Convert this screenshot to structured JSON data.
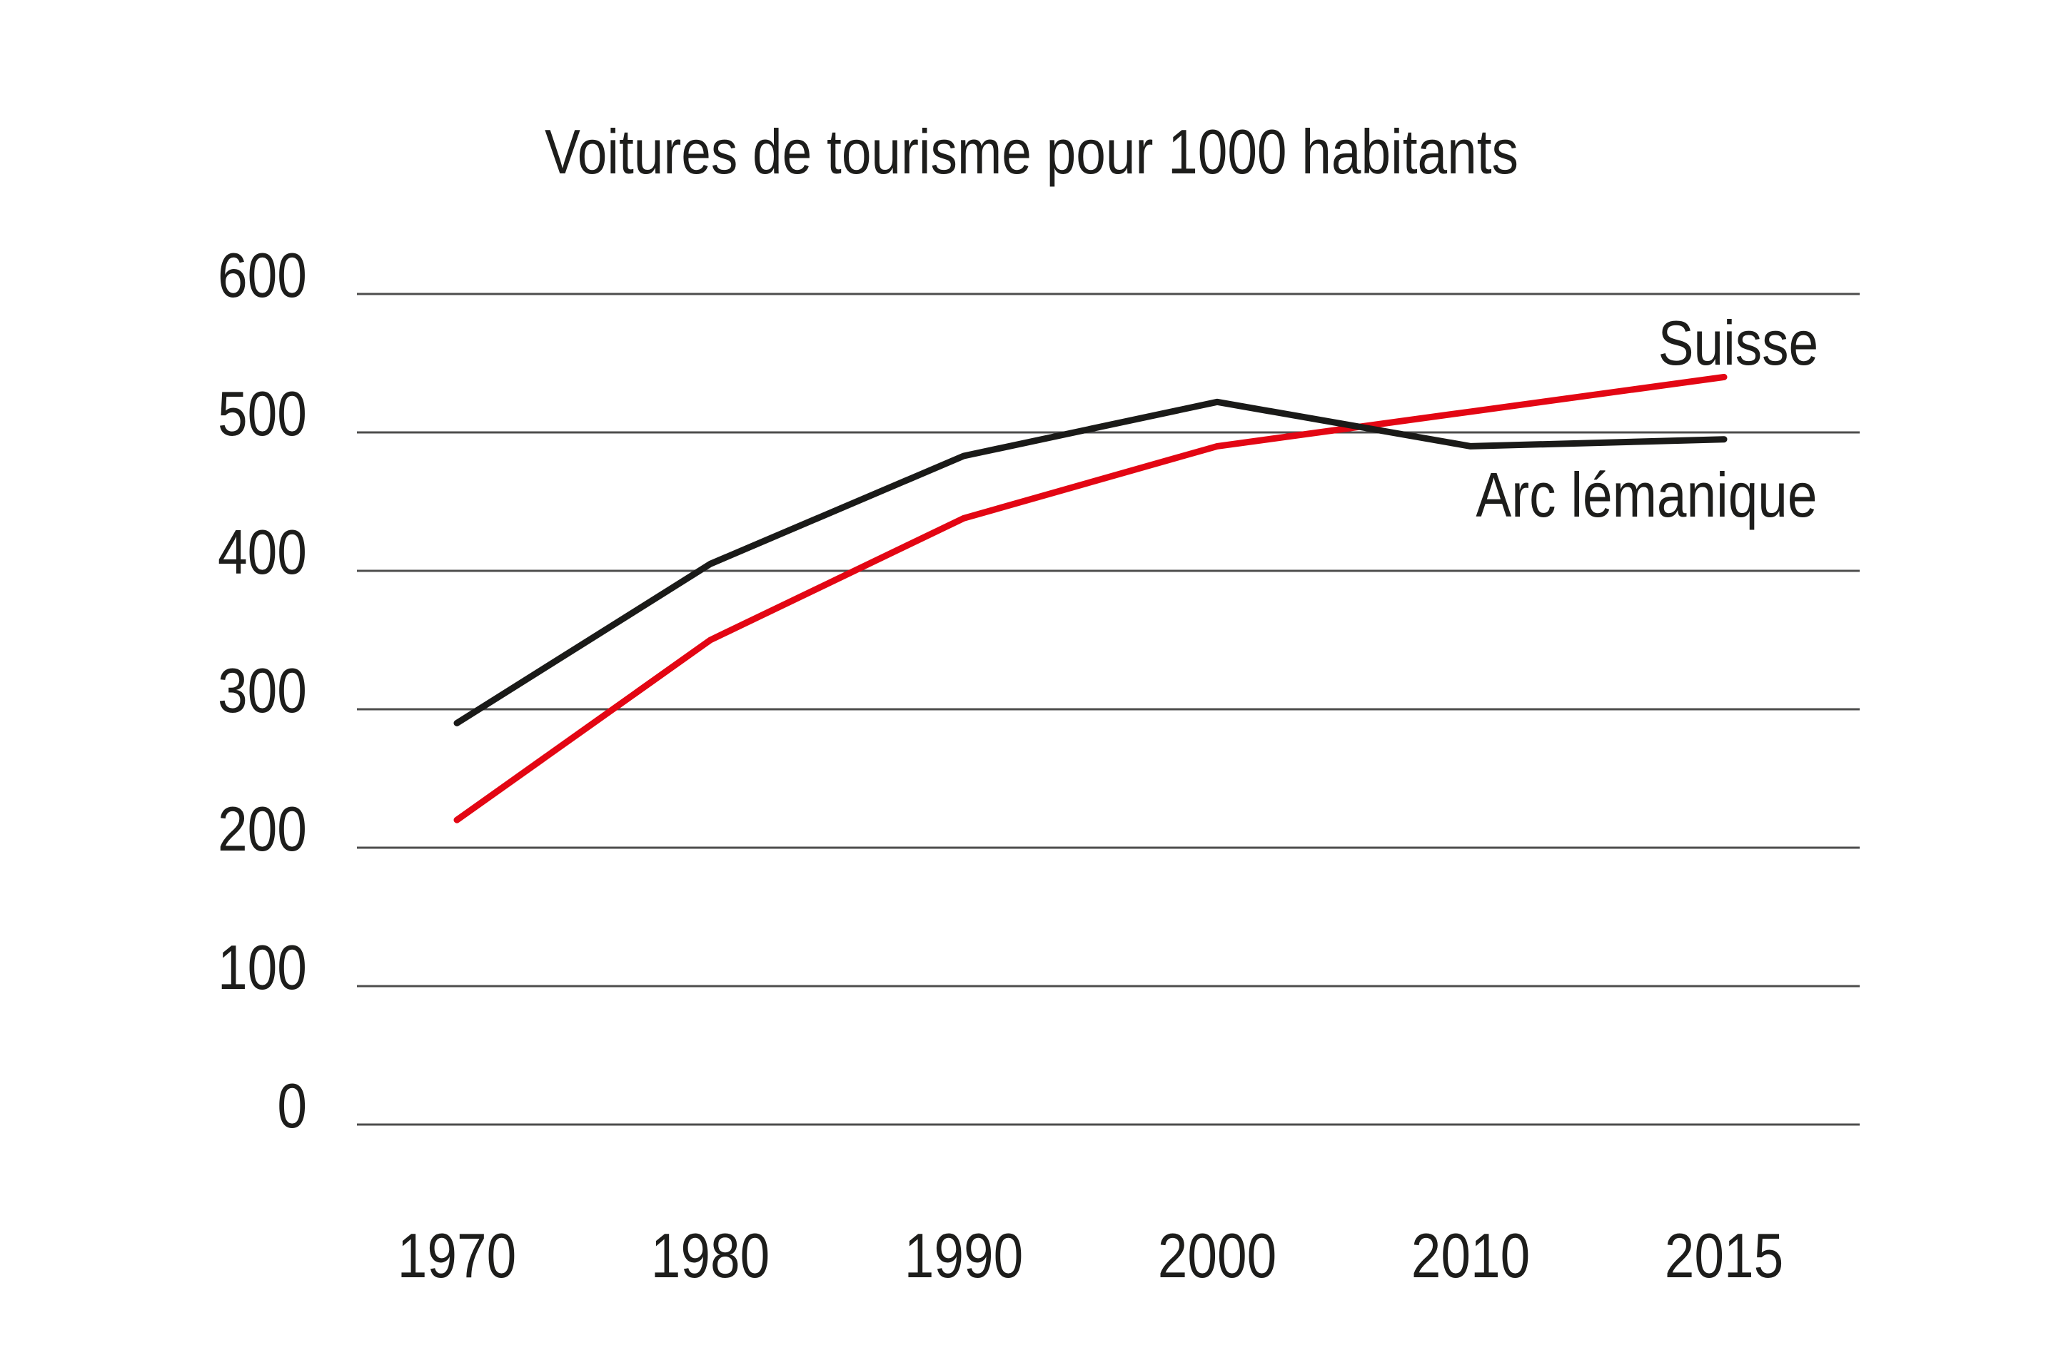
{
  "chart_data": {
    "type": "line",
    "title": "Voitures de tourisme pour 1000 habitants",
    "categories": [
      "1970",
      "1980",
      "1990",
      "2000",
      "2010",
      "2015"
    ],
    "y_ticks": [
      0,
      100,
      200,
      300,
      400,
      500,
      600
    ],
    "ylim": [
      0,
      620
    ],
    "xlabel": "",
    "ylabel": "",
    "grid": "horizontal-only",
    "legend_position": "inline-labels-at-line-end",
    "colors": {
      "suisse_line": "#e30613",
      "arc_lemanique_line": "#1a1a18",
      "gridline": "#4d4d4c",
      "text": "#1d1d1b",
      "background": "#ffffff"
    },
    "series": [
      {
        "name": "Suisse",
        "color": "#e30613",
        "values": [
          220,
          350,
          438,
          490,
          515,
          540
        ]
      },
      {
        "name": "Arc lémanique",
        "color": "#1a1a18",
        "values": [
          290,
          405,
          483,
          522,
          490,
          495
        ]
      }
    ]
  }
}
